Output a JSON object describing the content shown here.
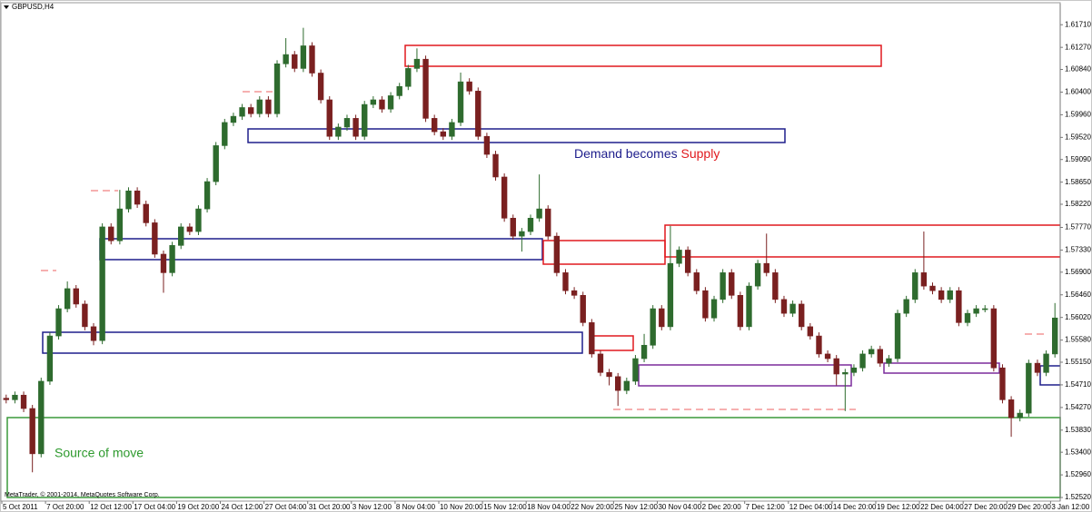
{
  "chart_data": {
    "type": "candlestick",
    "title": "GBPUSD,H4",
    "copyright": "MetaTrader, © 2001-2014, MetaQuotes Software Corp.",
    "annotations": {
      "demand_text": "Demand becomes ",
      "supply_text": "Supply",
      "source_text": "Source of move"
    },
    "bull_color": "#2e6b2e",
    "bear_color": "#7a2020",
    "ylim": [
      1.5245,
      1.6212
    ],
    "yticks": [
      {
        "value": 1.6171,
        "label": "1.61710"
      },
      {
        "value": 1.6127,
        "label": "1.61270"
      },
      {
        "value": 1.6084,
        "label": "1.60840"
      },
      {
        "value": 1.604,
        "label": "1.60400"
      },
      {
        "value": 1.5996,
        "label": "1.59960"
      },
      {
        "value": 1.5952,
        "label": "1.59520"
      },
      {
        "value": 1.5909,
        "label": "1.59090"
      },
      {
        "value": 1.5865,
        "label": "1.58650"
      },
      {
        "value": 1.5822,
        "label": "1.58220"
      },
      {
        "value": 1.5777,
        "label": "1.57770"
      },
      {
        "value": 1.5733,
        "label": "1.57330"
      },
      {
        "value": 1.569,
        "label": "1.56900"
      },
      {
        "value": 1.5646,
        "label": "1.56460"
      },
      {
        "value": 1.5602,
        "label": "1.56020"
      },
      {
        "value": 1.5558,
        "label": "1.55580"
      },
      {
        "value": 1.5515,
        "label": "1.55150"
      },
      {
        "value": 1.5471,
        "label": "1.54710"
      },
      {
        "value": 1.5427,
        "label": "1.54270"
      },
      {
        "value": 1.5383,
        "label": "1.53830"
      },
      {
        "value": 1.534,
        "label": "1.53400"
      },
      {
        "value": 1.5296,
        "label": "1.52960"
      },
      {
        "value": 1.5252,
        "label": "1.52520"
      }
    ],
    "categories": [
      "5 Oct 2011",
      null,
      null,
      null,
      null,
      "7 Oct 20:00",
      null,
      null,
      null,
      null,
      "12 Oct 12:00",
      null,
      null,
      null,
      null,
      "17 Oct 04:00",
      null,
      null,
      null,
      null,
      "19 Oct 20:00",
      null,
      null,
      null,
      null,
      "24 Oct 12:00",
      null,
      null,
      null,
      null,
      "27 Oct 04:00",
      null,
      null,
      null,
      null,
      "31 Oct 20:00",
      null,
      null,
      null,
      null,
      "3 Nov 12:00",
      null,
      null,
      null,
      null,
      "8 Nov 04:00",
      null,
      null,
      null,
      null,
      "10 Nov 20:00",
      null,
      null,
      null,
      null,
      "15 Nov 12:00",
      null,
      null,
      null,
      null,
      "18 Nov 04:00",
      null,
      null,
      null,
      null,
      "22 Nov 20:00",
      null,
      null,
      null,
      null,
      "25 Nov 12:00",
      null,
      null,
      null,
      null,
      "30 Nov 04:00",
      null,
      null,
      null,
      null,
      "2 Dec 20:00",
      null,
      null,
      null,
      null,
      "7 Dec 12:00",
      null,
      null,
      null,
      null,
      "12 Dec 04:00",
      null,
      null,
      null,
      null,
      "14 Dec 20:00",
      null,
      null,
      null,
      null,
      "19 Dec 12:00",
      null,
      null,
      null,
      null,
      "22 Dec 04:00",
      null,
      null,
      null,
      null,
      "27 Dec 20:00",
      null,
      null,
      null,
      null,
      "29 Dec 20:00",
      null,
      null,
      null,
      null,
      "3 Jan 12:00"
    ],
    "open": [
      1.5445,
      1.5442,
      1.5451,
      1.5425,
      1.5337,
      1.5478,
      1.5566,
      1.5619,
      1.5658,
      1.5628,
      1.5584,
      1.5557,
      1.5778,
      1.5751,
      1.5813,
      1.5848,
      1.5822,
      1.5786,
      1.5725,
      1.5689,
      1.5742,
      1.5778,
      1.5769,
      1.5813,
      1.5866,
      1.5936,
      1.5981,
      1.5993,
      1.601,
      1.5998,
      1.6025,
      1.5998,
      1.6095,
      1.6113,
      1.6086,
      1.613,
      1.6077,
      1.6025,
      1.5954,
      1.5972,
      1.5989,
      1.5954,
      1.6016,
      1.6025,
      1.6007,
      1.6033,
      1.6051,
      1.6086,
      1.6104,
      1.5989,
      1.5963,
      1.5954,
      1.5981,
      1.606,
      1.6042,
      1.5954,
      1.5919,
      1.5875,
      1.5795,
      1.576,
      1.5769,
      1.5795,
      1.5813,
      1.576,
      1.5689,
      1.5654,
      1.5645,
      1.5592,
      1.5531,
      1.5495,
      1.5487,
      1.546,
      1.5478,
      1.5522,
      1.5548,
      1.5619,
      1.5584,
      1.5707,
      1.5733,
      1.5689,
      1.5654,
      1.5601,
      1.5637,
      1.5689,
      1.5645,
      1.5584,
      1.5663,
      1.5707,
      1.5689,
      1.5637,
      1.561,
      1.5628,
      1.5584,
      1.5566,
      1.5531,
      1.5522,
      1.5492,
      1.5495,
      1.5504,
      1.5531,
      1.554,
      1.5513,
      1.5522,
      1.561,
      1.5637,
      1.5689,
      1.5663,
      1.5654,
      1.5637,
      1.5654,
      1.5592,
      1.561,
      1.5619,
      1.5619,
      1.5504,
      1.5442,
      1.5407,
      1.5416,
      1.5513,
      1.5495,
      1.5531
    ],
    "high": [
      1.5452,
      1.5458,
      1.5458,
      1.5432,
      1.5485,
      1.5573,
      1.5626,
      1.5672,
      1.5665,
      1.5635,
      1.5591,
      1.5785,
      1.5785,
      1.585,
      1.5855,
      1.5855,
      1.5829,
      1.5793,
      1.5732,
      1.5749,
      1.5785,
      1.5785,
      1.582,
      1.5873,
      1.5943,
      1.5988,
      1.6,
      1.6017,
      1.6017,
      1.6032,
      1.6032,
      1.6102,
      1.6145,
      1.612,
      1.6165,
      1.6137,
      1.6084,
      1.6032,
      1.5979,
      1.5996,
      1.5996,
      1.6023,
      1.6032,
      1.6032,
      1.604,
      1.6058,
      1.6093,
      1.6125,
      1.6111,
      1.5996,
      1.597,
      1.5988,
      1.6078,
      1.6067,
      1.6049,
      1.5961,
      1.5926,
      1.5882,
      1.5802,
      1.5776,
      1.5802,
      1.588,
      1.582,
      1.5767,
      1.5696,
      1.5661,
      1.5652,
      1.5599,
      1.5538,
      1.5502,
      1.5494,
      1.5485,
      1.5529,
      1.557,
      1.5626,
      1.5626,
      1.578,
      1.574,
      1.574,
      1.5696,
      1.5661,
      1.5644,
      1.5696,
      1.5696,
      1.5652,
      1.567,
      1.5714,
      1.5765,
      1.5696,
      1.5644,
      1.5635,
      1.5635,
      1.5591,
      1.5573,
      1.5538,
      1.5529,
      1.5502,
      1.5511,
      1.5538,
      1.5547,
      1.5547,
      1.5529,
      1.5617,
      1.5644,
      1.5696,
      1.5769,
      1.567,
      1.5661,
      1.5661,
      1.5661,
      1.5617,
      1.5626,
      1.5626,
      1.5626,
      1.5511,
      1.5449,
      1.5423,
      1.552,
      1.552,
      1.5538,
      1.563
    ],
    "low": [
      1.5435,
      1.5435,
      1.5418,
      1.5301,
      1.533,
      1.5471,
      1.5559,
      1.5612,
      1.5621,
      1.5577,
      1.5548,
      1.555,
      1.5744,
      1.5744,
      1.5806,
      1.5815,
      1.5779,
      1.5718,
      1.565,
      1.5682,
      1.5735,
      1.5762,
      1.5762,
      1.5806,
      1.5859,
      1.5929,
      1.5974,
      1.5986,
      1.5991,
      1.5991,
      1.5991,
      1.5991,
      1.6088,
      1.6079,
      1.6079,
      1.607,
      1.6018,
      1.5947,
      1.5947,
      1.5965,
      1.5947,
      1.5947,
      1.6009,
      1.6,
      1.6,
      1.6026,
      1.6044,
      1.6079,
      1.5982,
      1.5956,
      1.5947,
      1.5947,
      1.5974,
      1.6035,
      1.5947,
      1.5912,
      1.5868,
      1.5788,
      1.5753,
      1.573,
      1.5762,
      1.5788,
      1.5753,
      1.5682,
      1.5647,
      1.5638,
      1.5585,
      1.5524,
      1.5488,
      1.547,
      1.543,
      1.5453,
      1.5471,
      1.5515,
      1.5541,
      1.5577,
      1.5577,
      1.57,
      1.5682,
      1.5647,
      1.5594,
      1.5594,
      1.563,
      1.5638,
      1.5577,
      1.5577,
      1.5656,
      1.5682,
      1.563,
      1.5603,
      1.5603,
      1.5577,
      1.5559,
      1.5524,
      1.5515,
      1.547,
      1.542,
      1.5488,
      1.5497,
      1.5524,
      1.5506,
      1.5506,
      1.5515,
      1.5603,
      1.563,
      1.5656,
      1.5647,
      1.563,
      1.563,
      1.5585,
      1.5585,
      1.5603,
      1.5612,
      1.5497,
      1.5435,
      1.537,
      1.54,
      1.5409,
      1.5488,
      1.5488,
      1.5524
    ],
    "close": [
      1.5442,
      1.5451,
      1.5425,
      1.5337,
      1.5478,
      1.5566,
      1.5619,
      1.5658,
      1.5628,
      1.5584,
      1.5557,
      1.5778,
      1.5751,
      1.5813,
      1.5848,
      1.5822,
      1.5786,
      1.5725,
      1.5689,
      1.5742,
      1.5778,
      1.5769,
      1.5813,
      1.5866,
      1.5936,
      1.5981,
      1.5993,
      1.601,
      1.5998,
      1.6025,
      1.5998,
      1.6095,
      1.6113,
      1.6086,
      1.613,
      1.6077,
      1.6025,
      1.5954,
      1.5972,
      1.5989,
      1.5954,
      1.6016,
      1.6025,
      1.6007,
      1.6033,
      1.6051,
      1.6086,
      1.6104,
      1.5989,
      1.5963,
      1.5954,
      1.5981,
      1.606,
      1.6042,
      1.5954,
      1.5919,
      1.5875,
      1.5795,
      1.576,
      1.5769,
      1.5795,
      1.5813,
      1.576,
      1.5689,
      1.5654,
      1.5645,
      1.5592,
      1.5531,
      1.5495,
      1.5487,
      1.546,
      1.5478,
      1.5522,
      1.5548,
      1.5619,
      1.5584,
      1.5707,
      1.5733,
      1.5689,
      1.5654,
      1.5601,
      1.5637,
      1.5689,
      1.5645,
      1.5584,
      1.5663,
      1.5707,
      1.5689,
      1.5637,
      1.561,
      1.5628,
      1.5584,
      1.5566,
      1.5531,
      1.5522,
      1.5492,
      1.5495,
      1.5504,
      1.5531,
      1.554,
      1.5513,
      1.5522,
      1.561,
      1.5637,
      1.5689,
      1.5663,
      1.5654,
      1.5637,
      1.5654,
      1.5592,
      1.561,
      1.5619,
      1.5619,
      1.5504,
      1.5442,
      1.5407,
      1.5416,
      1.5513,
      1.5495,
      1.5531,
      1.5601
    ]
  }
}
